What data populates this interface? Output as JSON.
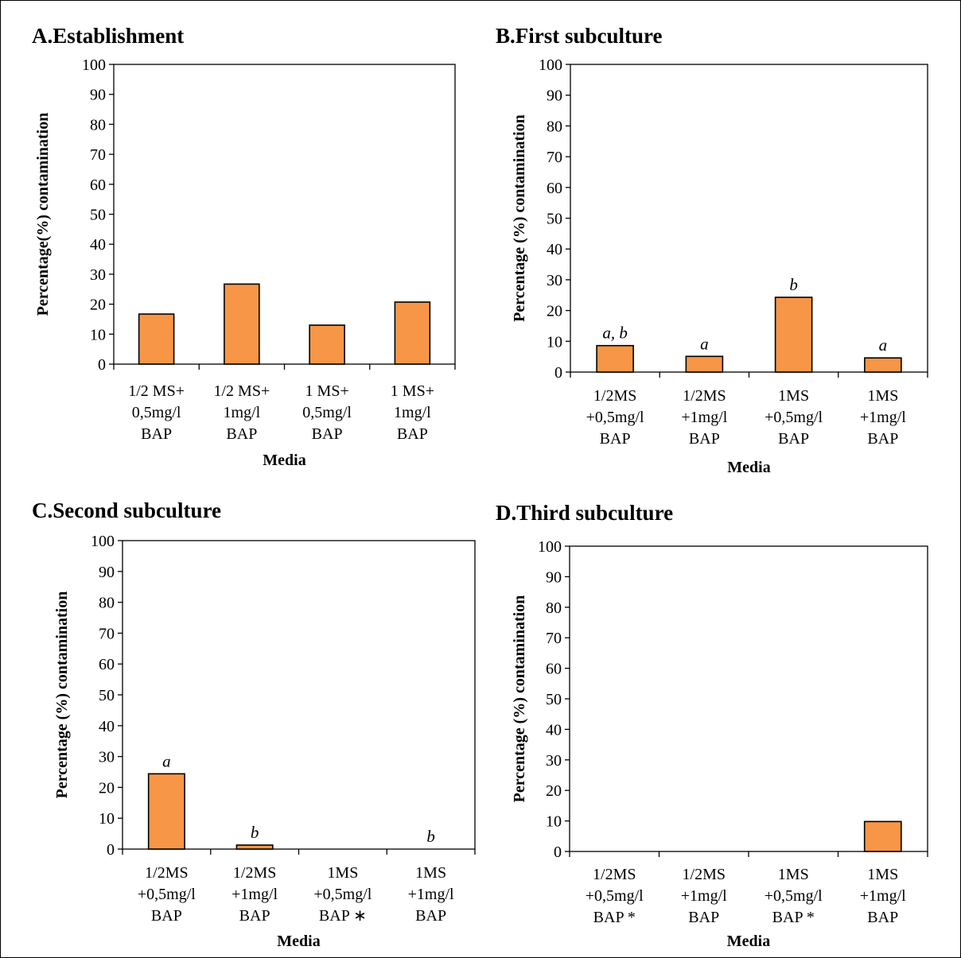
{
  "chart_data": [
    {
      "type": "bar",
      "title": "A.Establishment",
      "xlabel": "Media",
      "ylabel": "Percentage(%) contamination",
      "ylim": [
        0,
        100
      ],
      "yticks": [
        0,
        10,
        20,
        30,
        40,
        50,
        60,
        70,
        80,
        90,
        100
      ],
      "categories": [
        [
          "1/2 MS+",
          "0,5mg/l",
          "BAP"
        ],
        [
          "1/2 MS+",
          "1mg/l",
          "BAP"
        ],
        [
          "1 MS+",
          "0,5mg/l",
          "BAP"
        ],
        [
          "1 MS+",
          "1mg/l",
          "BAP"
        ]
      ],
      "values": [
        16.7,
        26.7,
        13.0,
        20.7
      ],
      "labels": [
        "",
        "",
        "",
        ""
      ],
      "bar_color": "#F79646",
      "grid": false
    },
    {
      "type": "bar",
      "title": "B.First subculture",
      "xlabel": "Media",
      "ylabel": "Percentage (%) contamination",
      "ylim": [
        0,
        100
      ],
      "yticks": [
        0,
        10,
        20,
        30,
        40,
        50,
        60,
        70,
        80,
        90,
        100
      ],
      "categories": [
        [
          "1/2MS",
          "+0,5mg/l",
          "BAP"
        ],
        [
          "1/2MS",
          "+1mg/l",
          "BAP"
        ],
        [
          "1MS",
          "+0,5mg/l",
          "BAP"
        ],
        [
          "1MS",
          "+1mg/l",
          "BAP"
        ]
      ],
      "values": [
        8.6,
        5.1,
        24.3,
        4.6
      ],
      "labels": [
        "a, b",
        "a",
        "b",
        "a"
      ],
      "bar_color": "#F79646",
      "grid": false
    },
    {
      "type": "bar",
      "title": "C.Second subculture",
      "xlabel": "Media",
      "ylabel": "Percentage (%) contamination",
      "ylim": [
        0,
        100
      ],
      "yticks": [
        0,
        10,
        20,
        30,
        40,
        50,
        60,
        70,
        80,
        90,
        100
      ],
      "categories": [
        [
          "1/2MS",
          "+0,5mg/l",
          "BAP"
        ],
        [
          "1/2MS",
          "+1mg/l",
          "BAP"
        ],
        [
          "1MS",
          "+0,5mg/l",
          "BAP ∗"
        ],
        [
          "1MS",
          "+1mg/l",
          "BAP"
        ]
      ],
      "values": [
        24.4,
        1.3,
        0,
        0
      ],
      "labels": [
        "a",
        "b",
        "",
        "b"
      ],
      "bar_color": "#F79646",
      "grid": false
    },
    {
      "type": "bar",
      "title": "D.Third subculture",
      "xlabel": "Media",
      "ylabel": "Percentage (%) contamination",
      "ylim": [
        0,
        100
      ],
      "yticks": [
        0,
        10,
        20,
        30,
        40,
        50,
        60,
        70,
        80,
        90,
        100
      ],
      "categories": [
        [
          "1/2MS",
          "+0,5mg/l",
          "BAP *"
        ],
        [
          "1/2MS",
          "+1mg/l",
          "BAP"
        ],
        [
          "1MS",
          "+0,5mg/l",
          "BAP *"
        ],
        [
          "1MS",
          "+1mg/l",
          "BAP"
        ]
      ],
      "values": [
        0,
        0,
        0,
        9.8
      ],
      "labels": [
        "",
        "",
        "",
        ""
      ],
      "bar_color": "#F79646",
      "grid": false
    }
  ]
}
